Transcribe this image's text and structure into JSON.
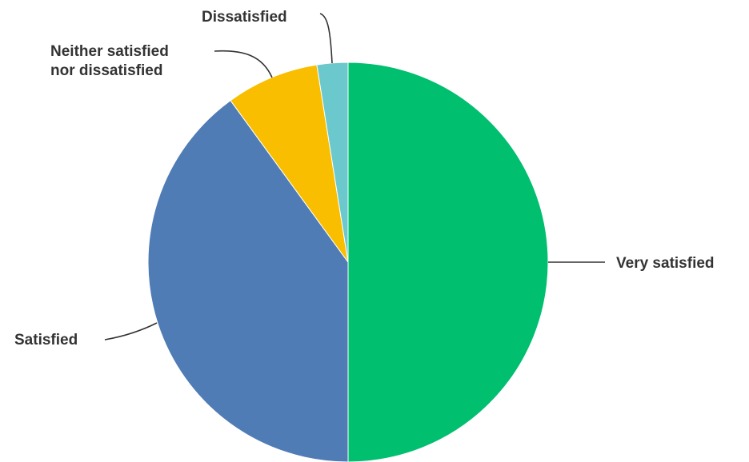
{
  "chart_data": {
    "type": "pie",
    "title": "",
    "categories": [
      "Very satisfied",
      "Satisfied",
      "Neither satisfied nor dissatisfied",
      "Dissatisfied"
    ],
    "values": [
      50.0,
      40.0,
      7.5,
      2.5
    ],
    "colors": [
      "#00bf6f",
      "#507cb6",
      "#f9be00",
      "#6bc8cd"
    ],
    "labels": [
      {
        "lines": [
          "Very satisfied"
        ]
      },
      {
        "lines": [
          "Satisfied"
        ]
      },
      {
        "lines": [
          "Neither satisfied",
          "nor dissatisfied"
        ]
      },
      {
        "lines": [
          "Dissatisfied"
        ]
      }
    ],
    "legend": "none",
    "start_angle": "top, clockwise"
  }
}
